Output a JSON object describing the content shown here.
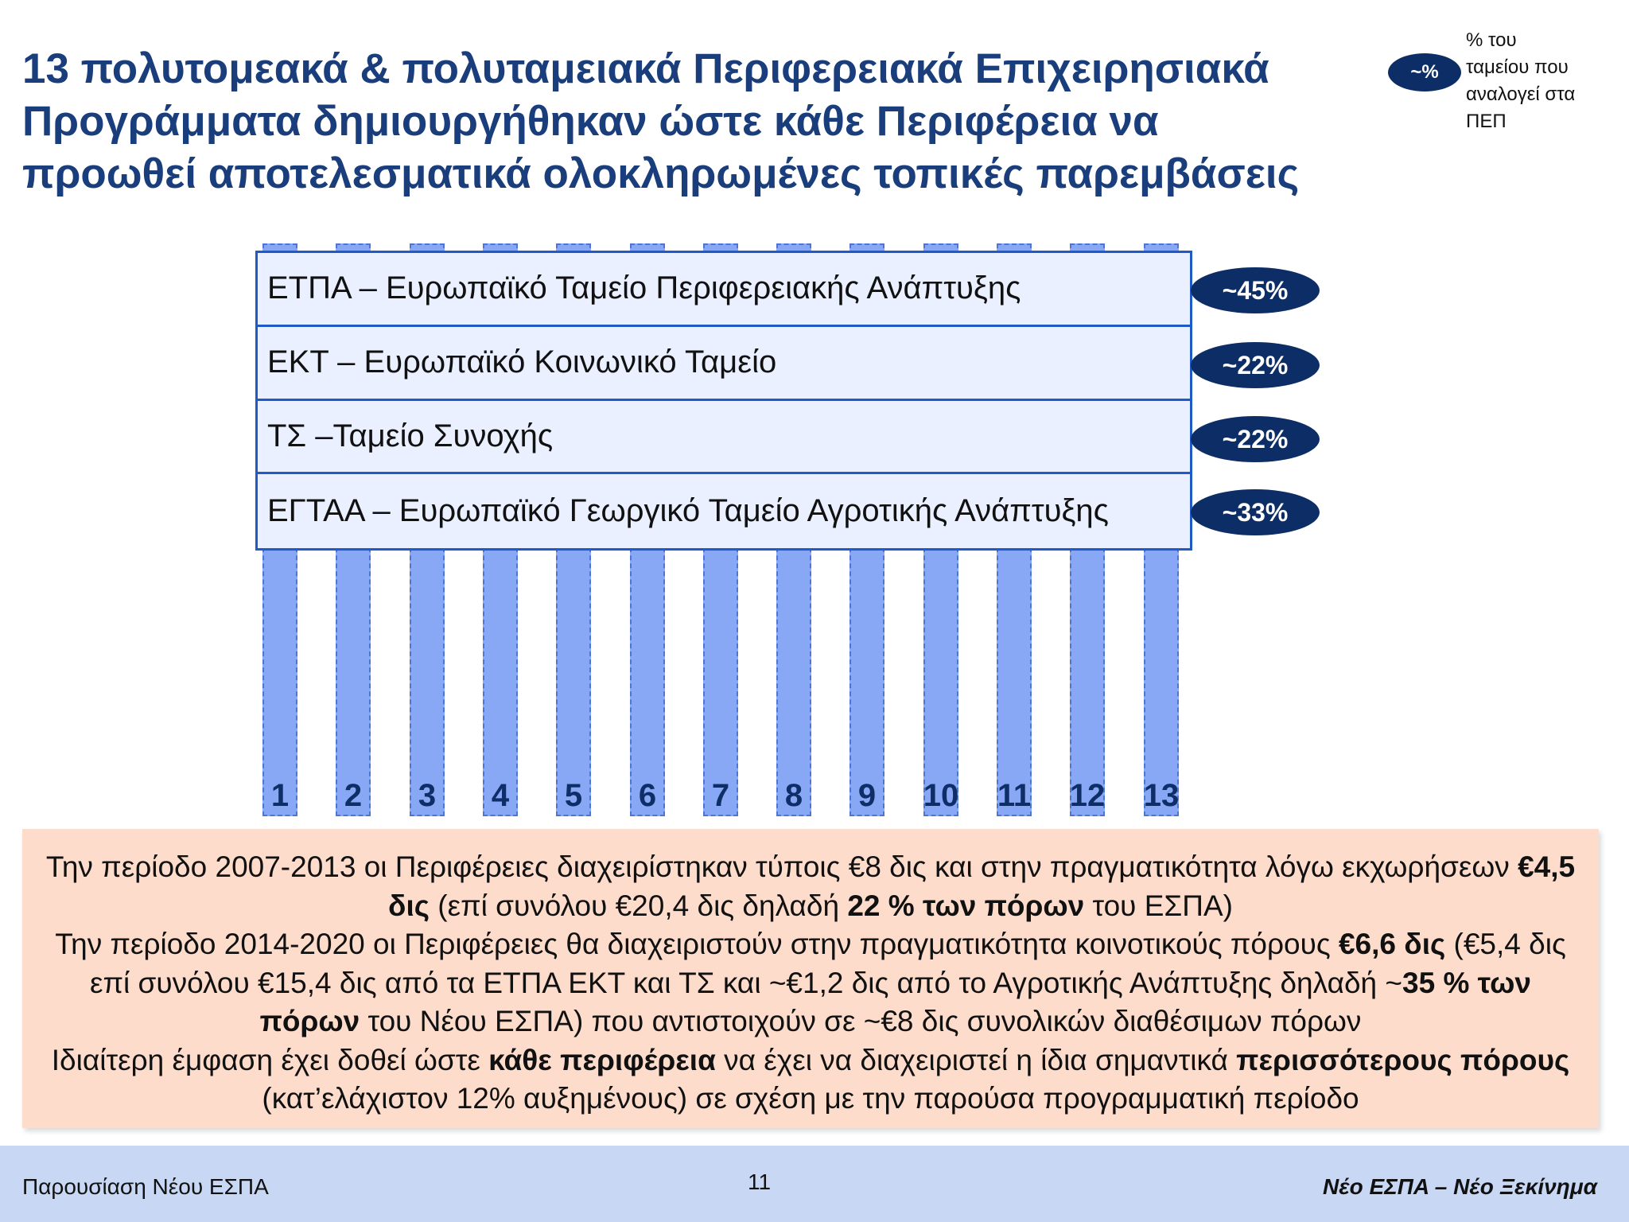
{
  "title": {
    "line1": "13 πολυτομεακά & πολυταμειακά Περιφερειακά Επιχειρησιακά",
    "line2": "Προγράμματα δημιουργήθηκαν ώστε κάθε Περιφέρεια να",
    "line3": "προωθεί αποτελεσματικά ολοκληρωμένες τοπικές παρεμβάσεις"
  },
  "legend": {
    "badge": "~%",
    "line1": "% του",
    "line2": "ταμείου που",
    "line3": "αναλογεί στα",
    "line4": "ΠΕΠ"
  },
  "programs": [
    "1",
    "2",
    "3",
    "4",
    "5",
    "6",
    "7",
    "8",
    "9",
    "10",
    "11",
    "12",
    "13"
  ],
  "funds": [
    {
      "label": "ΕΤΠΑ – Ευρωπαϊκό Ταμείο Περιφερειακής Ανάπτυξης",
      "share": "~45%"
    },
    {
      "label": "ΕΚΤ – Ευρωπαϊκό Κοινωνικό Ταμείο",
      "share": "~22%"
    },
    {
      "label": "ΤΣ –Ταμείο Συνοχής",
      "share": "~22%"
    },
    {
      "label": "ΕΓΤΑΑ – Ευρωπαϊκό Γεωργικό Ταμείο Αγροτικής Ανάπτυξης",
      "share": "~33%"
    }
  ],
  "info": {
    "p1_a": "Την περίοδο 2007-2013 οι Περιφέρειες διαχειρίστηκαν τύποις €8 δις και στην πραγματικότητα λόγω εκχωρήσεων ",
    "p1_b": "€4,5 δις",
    "p1_c": " (επί συνόλου €20,4 δις δηλαδή ",
    "p1_d": "22 % των πόρων",
    "p1_e": " του ΕΣΠΑ)",
    "p2_a": "Την περίοδο 2014-2020 οι Περιφέρειες θα διαχειριστούν στην πραγματικότητα κοινοτικούς πόρους ",
    "p2_b": "€6,6 δις",
    "p2_c": " (€5,4 δις επί συνόλου €15,4 δις από τα ΕΤΠΑ ΕΚΤ και ΤΣ και ~€1,2 δις από το Αγροτικής Ανάπτυξης δηλαδή ~",
    "p2_d": "35 % των πόρων",
    "p2_e": " του Νέου ΕΣΠΑ) που αντιστοιχούν σε ~€8 δις συνολικών διαθέσιμων πόρων",
    "p3_a": "Ιδιαίτερη έμφαση έχει δοθεί ώστε ",
    "p3_b": "κάθε περιφέρεια",
    "p3_c": " να έχει να διαχειριστεί η ίδια σημαντικά ",
    "p3_d": "περισσότερους πόρους",
    "p3_e": " (κατ’ελάχιστον 12% αυξημένους) σε σχέση με την παρούσα προγραμματική περίοδο"
  },
  "footer": {
    "left": "Παρουσίαση Νέου ΕΣΠΑ",
    "page": "11",
    "right": "Νέο ΕΣΠΑ – Νέο Ξεκίνημα"
  }
}
